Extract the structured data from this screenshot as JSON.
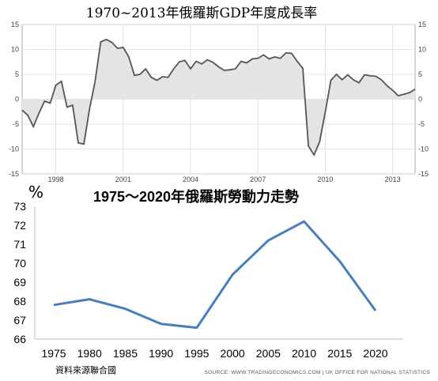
{
  "chart_data": [
    {
      "type": "area",
      "title": "1970~2013年俄羅斯GDP年度成長率",
      "ylim": [
        -15,
        15
      ],
      "yticks": [
        15,
        10,
        5,
        0,
        -5,
        -10,
        -15
      ],
      "xticks": [
        1998,
        2001,
        2004,
        2007,
        2010,
        2013
      ],
      "grid": true,
      "x": [
        1996.5,
        1996.75,
        1997,
        1997.25,
        1997.5,
        1997.75,
        1998,
        1998.25,
        1998.5,
        1998.75,
        1999,
        1999.25,
        1999.5,
        1999.75,
        2000,
        2000.25,
        2000.5,
        2000.75,
        2001,
        2001.25,
        2001.5,
        2001.75,
        2002,
        2002.25,
        2002.5,
        2002.75,
        2003,
        2003.25,
        2003.5,
        2003.75,
        2004,
        2004.25,
        2004.5,
        2004.75,
        2005,
        2005.25,
        2005.5,
        2005.75,
        2006,
        2006.25,
        2006.5,
        2006.75,
        2007,
        2007.25,
        2007.5,
        2007.75,
        2008,
        2008.25,
        2008.5,
        2008.75,
        2009,
        2009.25,
        2009.5,
        2009.75,
        2010,
        2010.25,
        2010.5,
        2010.75,
        2011,
        2011.25,
        2011.5,
        2011.75,
        2012,
        2012.25,
        2012.5,
        2012.75,
        2013,
        2013.25,
        2013.5,
        2013.75,
        2014
      ],
      "values": [
        -2.2,
        -3.2,
        -5.5,
        -2.8,
        -0.4,
        -0.8,
        2.8,
        3.6,
        -1.6,
        -1.2,
        -8.8,
        -9.0,
        -2.0,
        3.6,
        11.5,
        12.0,
        11.4,
        10.2,
        10.4,
        8.5,
        4.8,
        5.0,
        6.1,
        4.4,
        3.8,
        4.5,
        4.4,
        6.1,
        7.5,
        7.8,
        6.1,
        7.6,
        7.1,
        7.9,
        7.4,
        6.5,
        5.8,
        5.9,
        6.1,
        7.6,
        7.3,
        8.1,
        8.2,
        8.9,
        8.1,
        8.5,
        8.2,
        9.3,
        9.2,
        7.6,
        6.2,
        -9.4,
        -11.2,
        -8.5,
        -2.6,
        3.8,
        5.0,
        3.9,
        4.9,
        3.9,
        3.3,
        4.9,
        4.7,
        4.6,
        3.9,
        2.7,
        1.8,
        0.7,
        1.0,
        1.3,
        2.0
      ]
    },
    {
      "type": "line",
      "title": "1975～2020年俄羅斯勞動力走勢",
      "unit_label": "%",
      "ylim": [
        66,
        73
      ],
      "yticks": [
        73,
        72,
        71,
        70,
        69,
        68,
        67,
        66
      ],
      "x": [
        1975,
        1980,
        1985,
        1990,
        1995,
        2000,
        2005,
        2010,
        2015,
        2020
      ],
      "values": [
        67.8,
        68.1,
        67.6,
        66.8,
        66.6,
        69.4,
        71.2,
        72.2,
        70.1,
        67.5
      ],
      "note": "資料來源聯合國",
      "source": "SOURCE: WWW.TRADINGECONOMICS.COM | UK OFFICE FOR NATIONAL STATISTICS"
    }
  ],
  "colors": {
    "gdp_line": "#555555",
    "gdp_fill": "#e4e4e4",
    "labor_line": "#4a7ebb",
    "grid": "#dddddd",
    "axis": "#999999"
  }
}
